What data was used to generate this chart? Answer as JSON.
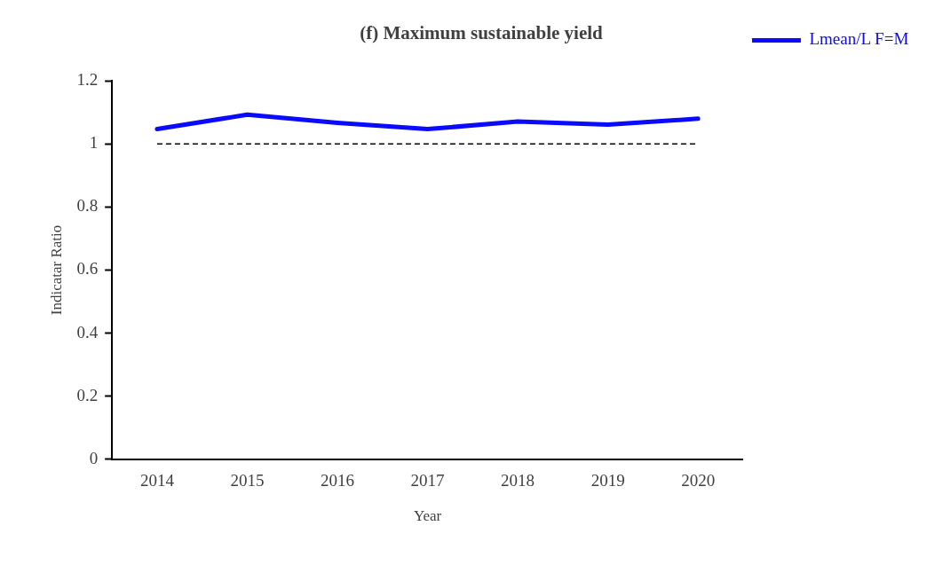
{
  "chart_data": {
    "type": "line",
    "title": "(f) Maximum sustainable yield",
    "xlabel": "Year",
    "ylabel": "Indicatar Ratio",
    "categories": [
      "2014",
      "2015",
      "2016",
      "2017",
      "2018",
      "2019",
      "2020"
    ],
    "series": [
      {
        "name": "Lmean/L F=M",
        "color": "#0a0aff",
        "values": [
          1.047,
          1.093,
          1.067,
          1.047,
          1.071,
          1.061,
          1.08
        ]
      }
    ],
    "ylim": [
      0,
      1.2
    ],
    "yticks": [
      0,
      0.2,
      0.4,
      0.6,
      0.8,
      1,
      1.2
    ],
    "grid": false,
    "legend": "top right",
    "marker": "none",
    "line_style": "solid",
    "ref_lines": [
      {
        "axis": "y",
        "value": 1,
        "color": "#000000",
        "line_style": "dashed"
      }
    ]
  }
}
